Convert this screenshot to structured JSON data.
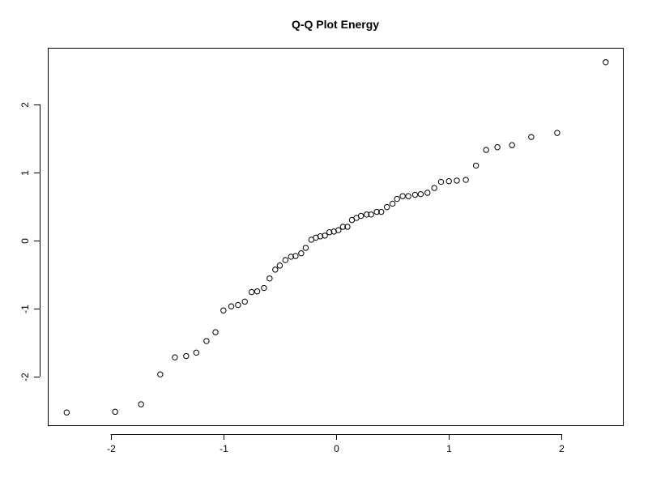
{
  "chart_data": {
    "type": "scatter",
    "title": "Q-Q Plot Energy",
    "xlabel": "",
    "ylabel": "",
    "xlim": [
      -2.55,
      2.55
    ],
    "ylim": [
      -2.73,
      2.82
    ],
    "x_ticks": [
      -2,
      -1,
      0,
      1,
      2
    ],
    "y_ticks": [
      -2,
      -1,
      0,
      1,
      2
    ],
    "grid": false,
    "points": [
      {
        "x": -2.39,
        "y": -2.53
      },
      {
        "x": -1.96,
        "y": -2.52
      },
      {
        "x": -1.73,
        "y": -2.41
      },
      {
        "x": -1.56,
        "y": -1.97
      },
      {
        "x": -1.43,
        "y": -1.72
      },
      {
        "x": -1.33,
        "y": -1.7
      },
      {
        "x": -1.24,
        "y": -1.65
      },
      {
        "x": -1.15,
        "y": -1.48
      },
      {
        "x": -1.07,
        "y": -1.35
      },
      {
        "x": -1.0,
        "y": -1.03
      },
      {
        "x": -0.93,
        "y": -0.97
      },
      {
        "x": -0.87,
        "y": -0.95
      },
      {
        "x": -0.81,
        "y": -0.9
      },
      {
        "x": -0.75,
        "y": -0.76
      },
      {
        "x": -0.7,
        "y": -0.75
      },
      {
        "x": -0.64,
        "y": -0.7
      },
      {
        "x": -0.59,
        "y": -0.56
      },
      {
        "x": -0.54,
        "y": -0.43
      },
      {
        "x": -0.5,
        "y": -0.37
      },
      {
        "x": -0.45,
        "y": -0.29
      },
      {
        "x": -0.4,
        "y": -0.24
      },
      {
        "x": -0.36,
        "y": -0.23
      },
      {
        "x": -0.31,
        "y": -0.19
      },
      {
        "x": -0.27,
        "y": -0.11
      },
      {
        "x": -0.22,
        "y": 0.01
      },
      {
        "x": -0.18,
        "y": 0.04
      },
      {
        "x": -0.14,
        "y": 0.06
      },
      {
        "x": -0.1,
        "y": 0.07
      },
      {
        "x": -0.06,
        "y": 0.12
      },
      {
        "x": -0.02,
        "y": 0.13
      },
      {
        "x": 0.02,
        "y": 0.15
      },
      {
        "x": 0.06,
        "y": 0.2
      },
      {
        "x": 0.1,
        "y": 0.2
      },
      {
        "x": 0.14,
        "y": 0.3
      },
      {
        "x": 0.18,
        "y": 0.33
      },
      {
        "x": 0.22,
        "y": 0.36
      },
      {
        "x": 0.27,
        "y": 0.38
      },
      {
        "x": 0.31,
        "y": 0.38
      },
      {
        "x": 0.36,
        "y": 0.42
      },
      {
        "x": 0.4,
        "y": 0.42
      },
      {
        "x": 0.45,
        "y": 0.49
      },
      {
        "x": 0.5,
        "y": 0.54
      },
      {
        "x": 0.54,
        "y": 0.61
      },
      {
        "x": 0.59,
        "y": 0.65
      },
      {
        "x": 0.64,
        "y": 0.65
      },
      {
        "x": 0.7,
        "y": 0.67
      },
      {
        "x": 0.75,
        "y": 0.68
      },
      {
        "x": 0.81,
        "y": 0.7
      },
      {
        "x": 0.87,
        "y": 0.77
      },
      {
        "x": 0.93,
        "y": 0.86
      },
      {
        "x": 1.0,
        "y": 0.87
      },
      {
        "x": 1.07,
        "y": 0.88
      },
      {
        "x": 1.15,
        "y": 0.89
      },
      {
        "x": 1.24,
        "y": 1.1
      },
      {
        "x": 1.33,
        "y": 1.33
      },
      {
        "x": 1.43,
        "y": 1.37
      },
      {
        "x": 1.56,
        "y": 1.4
      },
      {
        "x": 1.73,
        "y": 1.52
      },
      {
        "x": 1.96,
        "y": 1.58
      },
      {
        "x": 2.39,
        "y": 2.62
      }
    ]
  }
}
